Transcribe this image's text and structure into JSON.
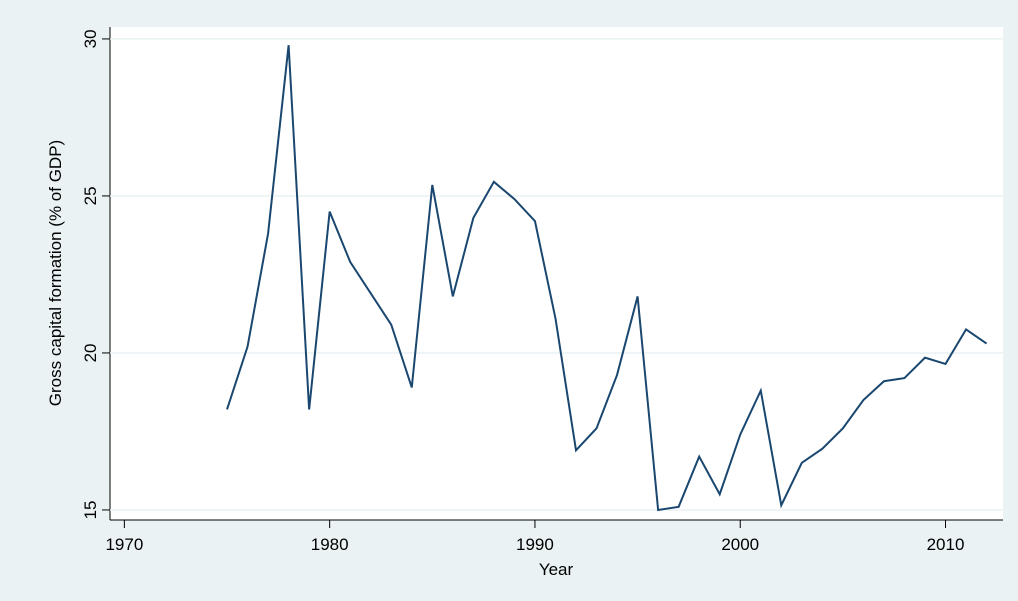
{
  "chart_data": {
    "type": "line",
    "x_label": "Year",
    "y_label": "Gross capital formation (% of GDP)",
    "x": [
      1975,
      1976,
      1977,
      1978,
      1979,
      1980,
      1981,
      1982,
      1983,
      1984,
      1985,
      1986,
      1987,
      1988,
      1989,
      1990,
      1991,
      1992,
      1993,
      1994,
      1995,
      1996,
      1997,
      1998,
      1999,
      2000,
      2001,
      2002,
      2003,
      2004,
      2005,
      2006,
      2007,
      2008,
      2009,
      2010,
      2011,
      2012
    ],
    "series": [
      {
        "color": "#1a476f",
        "values": [
          18.2,
          20.2,
          23.8,
          29.8,
          18.2,
          24.5,
          22.9,
          21.9,
          20.9,
          18.9,
          25.35,
          21.8,
          24.3,
          25.45,
          24.9,
          24.2,
          21.1,
          16.9,
          17.6,
          19.3,
          21.8,
          15.0,
          15.1,
          16.7,
          15.5,
          17.4,
          18.8,
          15.15,
          16.5,
          16.95,
          17.6,
          18.5,
          19.1,
          19.2,
          19.85,
          19.65,
          20.75,
          20.3
        ]
      }
    ],
    "xlim": [
      1969.3,
      2012.8
    ],
    "xticks": [
      1970,
      1980,
      1990,
      2000,
      2010
    ],
    "ylim": [
      14.68,
      30.38
    ],
    "yticks": [
      15,
      20,
      25,
      30
    ],
    "grid": true
  }
}
